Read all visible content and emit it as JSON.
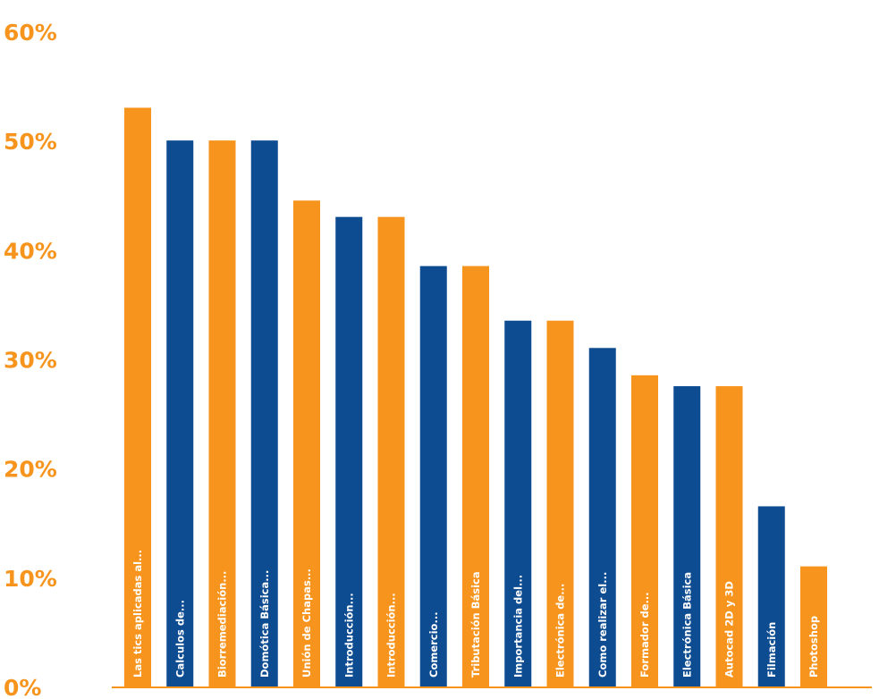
{
  "chart_data": {
    "type": "bar",
    "title": "",
    "xlabel": "",
    "ylabel": "",
    "ylim": [
      0,
      60
    ],
    "yticks": [
      "0%",
      "10%",
      "20%",
      "30%",
      "40%",
      "50%",
      "60%"
    ],
    "grid": false,
    "legend": "none",
    "colors": {
      "orange": "#F7941D",
      "blue": "#0E4C92"
    },
    "bars": [
      {
        "label": "Las tics aplicadas al...",
        "value": 53,
        "color": "orange"
      },
      {
        "label": "Calculos de...",
        "value": 50,
        "color": "blue"
      },
      {
        "label": "Biorremediación...",
        "value": 50,
        "color": "orange"
      },
      {
        "label": "Domótica Básica...",
        "value": 50,
        "color": "blue"
      },
      {
        "label": "Unión de Chapas...",
        "value": 44.5,
        "color": "orange"
      },
      {
        "label": "Introducción...",
        "value": 43,
        "color": "blue"
      },
      {
        "label": "Introducción...",
        "value": 43,
        "color": "orange"
      },
      {
        "label": "Comercio...",
        "value": 38.5,
        "color": "blue"
      },
      {
        "label": "Tributación Básica",
        "value": 38.5,
        "color": "orange"
      },
      {
        "label": "Importancia del...",
        "value": 33.5,
        "color": "blue"
      },
      {
        "label": "Electrónica de...",
        "value": 33.5,
        "color": "orange"
      },
      {
        "label": "Como realizar el...",
        "value": 31,
        "color": "blue"
      },
      {
        "label": "Formador de...",
        "value": 28.5,
        "color": "orange"
      },
      {
        "label": "Electrónica Básica",
        "value": 27.5,
        "color": "blue"
      },
      {
        "label": "Autocad 2D y 3D",
        "value": 27.5,
        "color": "orange"
      },
      {
        "label": "Filmación",
        "value": 16.5,
        "color": "blue"
      },
      {
        "label": "Photoshop",
        "value": 11,
        "color": "orange"
      }
    ]
  }
}
